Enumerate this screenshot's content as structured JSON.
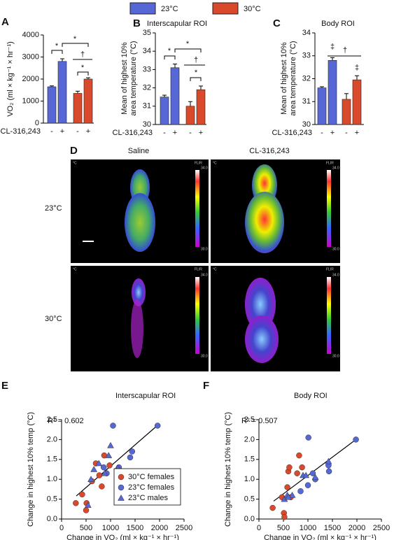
{
  "chart_data": [
    {
      "type": "bar",
      "panel": "A",
      "xlabel": "CL-316,243",
      "ylabel": [
        "VO₂ (ml × kg⁻¹ × hr⁻¹)"
      ],
      "categories": [
        "-",
        "+",
        "-",
        "+"
      ],
      "series": [
        {
          "name": "23°C",
          "color": "#5767d6",
          "values": [
            1650,
            2800,
            null,
            null
          ],
          "errors": [
            40,
            120,
            null,
            null
          ]
        },
        {
          "name": "30°C",
          "color": "#d84a2b",
          "values": [
            null,
            null,
            1350,
            2000
          ],
          "errors": [
            null,
            null,
            100,
            60
          ]
        }
      ],
      "ylim": [
        0,
        4000
      ],
      "yticks": [
        0,
        1000,
        2000,
        3000,
        4000
      ],
      "annotations": [
        "*",
        "*",
        "†",
        "*"
      ]
    },
    {
      "type": "bar",
      "panel": "B",
      "title": "Interscapular ROI",
      "xlabel": "CL-316,243",
      "ylabel": [
        "Mean of highest 10%",
        "area temperature (°C)"
      ],
      "categories": [
        "-",
        "+",
        "-",
        "+"
      ],
      "series": [
        {
          "color": "#5767d6",
          "values": [
            31.5,
            33.1,
            null,
            null
          ],
          "errors": [
            0.1,
            0.2,
            null,
            null
          ]
        },
        {
          "color": "#d84a2b",
          "values": [
            null,
            null,
            31.0,
            31.9
          ],
          "errors": [
            null,
            null,
            0.25,
            0.2
          ]
        }
      ],
      "ylim": [
        30,
        35
      ],
      "yticks": [
        30,
        31,
        32,
        33,
        34,
        35
      ],
      "annotations": [
        "*",
        "*",
        "†",
        "*"
      ]
    },
    {
      "type": "bar",
      "panel": "C",
      "title": "Body ROI",
      "xlabel": "CL-316,243",
      "ylabel": [
        "Mean of highest 10%",
        "area temperature (°C)"
      ],
      "categories": [
        "-",
        "+",
        "-",
        "+"
      ],
      "series": [
        {
          "color": "#5767d6",
          "values": [
            31.6,
            32.8,
            null,
            null
          ],
          "errors": [
            0.05,
            0.12,
            null,
            null
          ]
        },
        {
          "color": "#d84a2b",
          "values": [
            null,
            null,
            31.1,
            31.95
          ],
          "errors": [
            null,
            null,
            0.25,
            0.18
          ]
        }
      ],
      "ylim": [
        30,
        34
      ],
      "yticks": [
        30,
        31,
        32,
        33,
        34
      ],
      "annotations": [
        "‡",
        "†",
        "‡"
      ]
    },
    {
      "type": "scatter",
      "panel": "E",
      "title": "Interscapular ROI",
      "annotation": "R² = 0.602",
      "xlabel": "Change in VO₂ (ml × kg⁻¹ × hr⁻¹)",
      "ylabel": "Change in highest 10% temp (°C)",
      "legend": true,
      "series": [
        {
          "name": "30°C females",
          "color": "#d84a2b",
          "marker": "circle",
          "x": [
            290,
            420,
            510,
            500,
            620,
            700,
            770,
            820,
            870,
            980
          ],
          "values": [
            0.4,
            0.62,
            0.4,
            0.22,
            0.95,
            1.4,
            1.1,
            0.82,
            1.6,
            1.35
          ]
        },
        {
          "name": "23°C females",
          "color": "#5767d6",
          "marker": "circle",
          "x": [
            1050,
            1150,
            1170,
            1400,
            1440,
            1960,
            920,
            860
          ],
          "values": [
            2.35,
            1.25,
            1.3,
            1.55,
            1.7,
            2.35,
            1.15,
            1.3
          ]
        },
        {
          "name": "23°C males",
          "color": "#5767d6",
          "marker": "triangle",
          "x": [
            540,
            600,
            660,
            760,
            960,
            1000,
            1150,
            880
          ],
          "values": [
            0.35,
            1.0,
            1.25,
            1.4,
            1.6,
            1.85,
            1.28,
            1.15
          ]
        }
      ],
      "fit": {
        "x": [
          300,
          1970
        ],
        "y": [
          0.58,
          2.37
        ]
      },
      "xlim": [
        0,
        2500
      ],
      "xticks": [
        0,
        500,
        1000,
        1500,
        2000,
        2500
      ],
      "ylim": [
        0,
        2.5
      ],
      "yticks": [
        {
          "value": 0,
          "label": "0.0"
        },
        0.5,
        {
          "value": 1,
          "label": "1.0"
        },
        1.5,
        {
          "value": 2,
          "label": "2.0"
        },
        2.5
      ]
    },
    {
      "type": "scatter",
      "panel": "F",
      "title": "Body ROI",
      "annotation": "R² = 0.507",
      "xlabel": "Change in VO₂ (ml × kg⁻¹ × hr⁻¹)",
      "ylabel": "Change in highest 10% temp (°C)",
      "legend": false,
      "series": [
        {
          "name": "30°C females",
          "color": "#d84a2b",
          "marker": "circle",
          "x": [
            280,
            470,
            510,
            520,
            580,
            600,
            620,
            780,
            820,
            880,
            650
          ],
          "values": [
            0.28,
            0.55,
            0.15,
            0.05,
            0.8,
            1.2,
            1.3,
            1.15,
            1.6,
            1.3,
            0.55
          ]
        },
        {
          "name": "23°C females",
          "color": "#5767d6",
          "marker": "circle",
          "x": [
            1010,
            1000,
            1150,
            1420,
            1430,
            1980,
            1100,
            850
          ],
          "values": [
            2.05,
            0.85,
            1.0,
            1.35,
            1.2,
            2.0,
            1.15,
            0.7
          ]
        },
        {
          "name": "23°C males",
          "color": "#5767d6",
          "marker": "triangle",
          "x": [
            520,
            580,
            680,
            900,
            960,
            1150,
            1420,
            600
          ],
          "values": [
            0.5,
            0.6,
            0.6,
            1.1,
            1.1,
            1.05,
            1.45,
            0.55
          ]
        }
      ],
      "fit": {
        "x": [
          300,
          1980
        ],
        "y": [
          0.45,
          2.0
        ]
      },
      "xlim": [
        0,
        2500
      ],
      "xticks": [
        0,
        500,
        1000,
        1500,
        2000,
        2500
      ],
      "ylim": [
        0,
        2.5
      ],
      "yticks": [
        {
          "value": 0,
          "label": "0.0"
        },
        0.5,
        {
          "value": 1,
          "label": "1.0"
        },
        1.5,
        {
          "value": 2,
          "label": "2.0"
        },
        2.5
      ]
    }
  ],
  "panel_d": {
    "panel": "D",
    "columns": [
      "Saline",
      "CL-316,243"
    ],
    "rows": [
      "23°C",
      "30°C"
    ],
    "unit": "°C",
    "brand": "FLIR",
    "colorbar": [
      {
        "value": 34,
        "label": "34.0"
      },
      {
        "value": 30,
        "label": "30.0"
      }
    ]
  }
}
